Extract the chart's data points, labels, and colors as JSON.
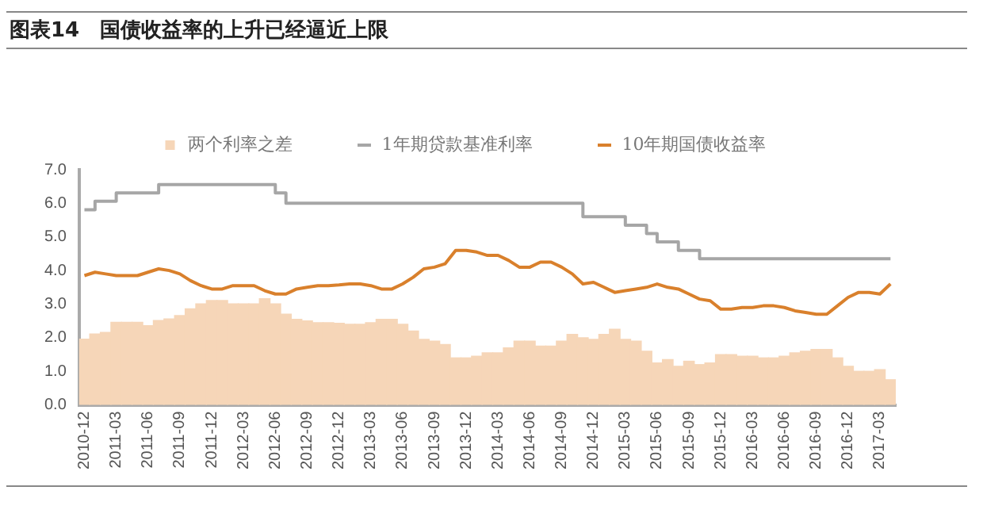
{
  "chart_data": {
    "type": "bar",
    "title": "图表14　国债收益率的上升已经逼近上限",
    "categories": [
      "2010-12",
      null,
      null,
      "2011-03",
      null,
      null,
      "2011-06",
      null,
      null,
      "2011-09",
      null,
      null,
      "2011-12",
      null,
      null,
      "2012-03",
      null,
      null,
      "2012-06",
      null,
      null,
      "2012-09",
      null,
      null,
      "2012-12",
      null,
      null,
      "2013-03",
      null,
      null,
      "2013-06",
      null,
      null,
      "2013-09",
      null,
      null,
      "2013-12",
      null,
      null,
      "2014-03",
      null,
      null,
      "2014-06",
      null,
      null,
      "2014-09",
      null,
      null,
      "2014-12",
      null,
      null,
      "2015-03",
      null,
      null,
      "2015-06",
      null,
      null,
      "2015-09",
      null,
      null,
      "2015-12",
      null,
      null,
      "2016-03",
      null,
      null,
      "2016-06",
      null,
      null,
      "2016-09",
      null,
      null,
      "2016-12",
      null,
      null,
      "2017-03",
      null
    ],
    "series": [
      {
        "name": "两个利率之差",
        "color": "#f6d6b8",
        "values": [
          1.96,
          2.11,
          2.16,
          2.46,
          2.46,
          2.46,
          2.36,
          2.51,
          2.56,
          2.66,
          2.86,
          3.01,
          3.11,
          3.11,
          3.01,
          3.01,
          3.01,
          3.16,
          3.01,
          2.7,
          2.55,
          2.5,
          2.45,
          2.45,
          2.43,
          2.4,
          2.4,
          2.45,
          2.55,
          2.55,
          2.4,
          2.2,
          1.95,
          1.9,
          1.8,
          1.4,
          1.4,
          1.45,
          1.55,
          1.55,
          1.7,
          1.9,
          1.9,
          1.75,
          1.75,
          1.9,
          2.1,
          2.0,
          1.95,
          2.1,
          2.25,
          1.95,
          1.9,
          1.6,
          1.25,
          1.35,
          1.15,
          1.3,
          1.2,
          1.25,
          1.5,
          1.5,
          1.45,
          1.45,
          1.4,
          1.4,
          1.45,
          1.55,
          1.6,
          1.65,
          1.65,
          1.4,
          1.15,
          1.0,
          1.0,
          1.05,
          0.75
        ]
      },
      {
        "name": "1年期贷款基准利率",
        "type": "step",
        "color": "#a6a6a6",
        "values": [
          5.81,
          6.06,
          6.06,
          6.31,
          6.31,
          6.31,
          6.31,
          6.56,
          6.56,
          6.56,
          6.56,
          6.56,
          6.56,
          6.56,
          6.56,
          6.56,
          6.56,
          6.56,
          6.31,
          6.0,
          6.0,
          6.0,
          6.0,
          6.0,
          6.0,
          6.0,
          6.0,
          6.0,
          6.0,
          6.0,
          6.0,
          6.0,
          6.0,
          6.0,
          6.0,
          6.0,
          6.0,
          6.0,
          6.0,
          6.0,
          6.0,
          6.0,
          6.0,
          6.0,
          6.0,
          6.0,
          6.0,
          5.6,
          5.6,
          5.6,
          5.6,
          5.35,
          5.35,
          5.1,
          4.85,
          4.85,
          4.6,
          4.6,
          4.35,
          4.35,
          4.35,
          4.35,
          4.35,
          4.35,
          4.35,
          4.35,
          4.35,
          4.35,
          4.35,
          4.35,
          4.35,
          4.35,
          4.35,
          4.35,
          4.35,
          4.35,
          4.35
        ]
      },
      {
        "name": "10年期国债收益率",
        "type": "line",
        "color": "#d9802c",
        "values": [
          3.85,
          3.95,
          3.9,
          3.85,
          3.85,
          3.85,
          3.95,
          4.05,
          4.0,
          3.9,
          3.7,
          3.55,
          3.45,
          3.45,
          3.55,
          3.55,
          3.55,
          3.4,
          3.3,
          3.3,
          3.45,
          3.5,
          3.55,
          3.55,
          3.57,
          3.6,
          3.6,
          3.55,
          3.45,
          3.45,
          3.6,
          3.8,
          4.05,
          4.1,
          4.2,
          4.6,
          4.6,
          4.55,
          4.45,
          4.45,
          4.3,
          4.1,
          4.1,
          4.25,
          4.25,
          4.1,
          3.9,
          3.6,
          3.65,
          3.5,
          3.35,
          3.4,
          3.45,
          3.5,
          3.6,
          3.5,
          3.45,
          3.3,
          3.15,
          3.1,
          2.85,
          2.85,
          2.9,
          2.9,
          2.95,
          2.95,
          2.9,
          2.8,
          2.75,
          2.7,
          2.7,
          2.95,
          3.2,
          3.35,
          3.35,
          3.3,
          3.6
        ]
      }
    ],
    "ylim": [
      0,
      7
    ],
    "yticks": [
      {
        "value": 0,
        "label": "0.0"
      },
      {
        "value": 1,
        "label": "1.0"
      },
      {
        "value": 2,
        "label": "2.0"
      },
      {
        "value": 3,
        "label": "3.0"
      },
      {
        "value": 4,
        "label": "4.0"
      },
      {
        "value": 5,
        "label": "5.0"
      },
      {
        "value": 6,
        "label": "6.0"
      },
      {
        "value": 7,
        "label": "7.0"
      }
    ],
    "grid": false,
    "legend": "top",
    "marker": "none",
    "line_style": "solid"
  }
}
